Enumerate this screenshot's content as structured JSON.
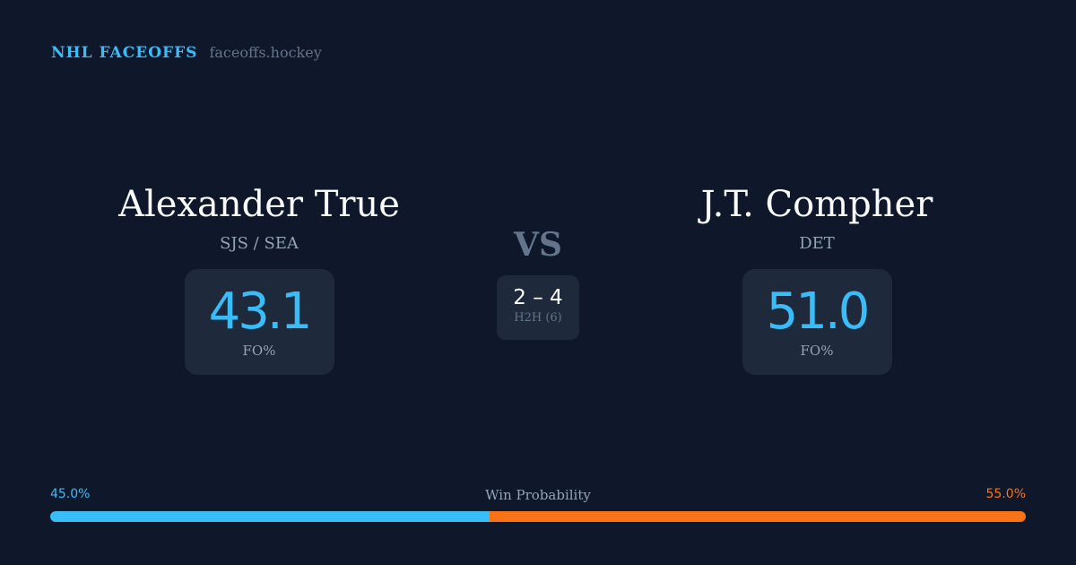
{
  "brand": {
    "title": "NHL FACEOFFS",
    "site": "faceoffs.hockey"
  },
  "left": {
    "name": "Alexander True",
    "team": "SJS / SEA",
    "fo": "43.1",
    "fo_label": "FO%"
  },
  "right": {
    "name": "J.T. Compher",
    "team": "DET",
    "fo": "51.0",
    "fo_label": "FO%"
  },
  "vs": "VS",
  "h2h": {
    "score": "2 – 4",
    "label": "H2H (6)"
  },
  "win": {
    "label": "Win Probability",
    "left": "45.0%",
    "right": "55.0%",
    "left_value": 45.0,
    "right_value": 55.0,
    "left_color": "#38bdf8",
    "right_color": "#f97316"
  }
}
